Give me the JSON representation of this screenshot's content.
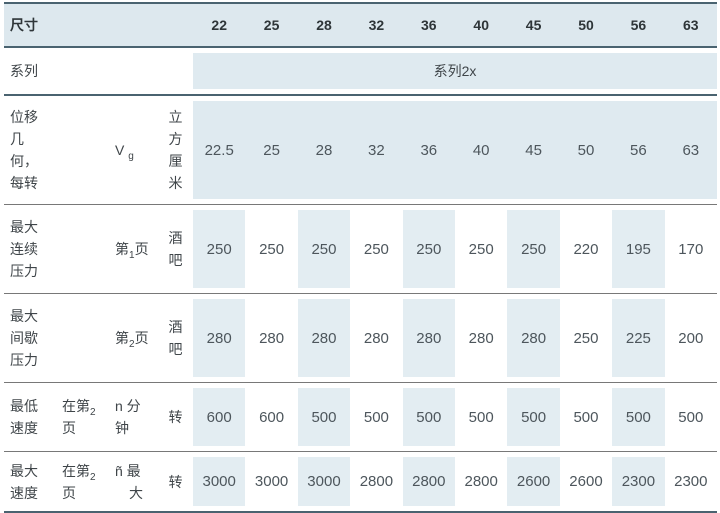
{
  "table": {
    "header": {
      "label": "尺寸",
      "sizes": [
        "22",
        "25",
        "28",
        "32",
        "36",
        "40",
        "45",
        "50",
        "56",
        "63"
      ]
    },
    "series": {
      "label": "系列",
      "value": "系列2x"
    },
    "rows": [
      {
        "id": "displacement",
        "label": "位移\n几\n何，\n每转",
        "sub_label_pre": "",
        "sub_label_sub": "",
        "sub_label_post": "",
        "symbol_pre": "V ",
        "symbol_sub": "g",
        "symbol_post": "",
        "unit": "立\n方\n厘\n米",
        "values": [
          "22.5",
          "25",
          "28",
          "32",
          "36",
          "40",
          "45",
          "50",
          "56",
          "63"
        ]
      },
      {
        "id": "max-continuous-pressure",
        "label": "最大\n连续\n压力",
        "sub_label_pre": "",
        "sub_label_sub": "",
        "sub_label_post": "",
        "symbol_pre": "第",
        "symbol_sub": "1",
        "symbol_post": "页",
        "unit": "酒\n吧",
        "values": [
          "250",
          "250",
          "250",
          "250",
          "250",
          "250",
          "250",
          "220",
          "195",
          "170"
        ]
      },
      {
        "id": "max-intermittent-pressure",
        "label": "最大\n间歇\n压力",
        "sub_label_pre": "",
        "sub_label_sub": "",
        "sub_label_post": "",
        "symbol_pre": "第",
        "symbol_sub": "2",
        "symbol_post": "页",
        "unit": "酒\n吧",
        "values": [
          "280",
          "280",
          "280",
          "280",
          "280",
          "280",
          "280",
          "250",
          "225",
          "200"
        ]
      },
      {
        "id": "min-speed",
        "label": "最低\n速度",
        "sub_label_pre": "在第",
        "sub_label_sub": "2",
        "sub_label_post": "\n页",
        "symbol_pre": "n 分\n钟",
        "symbol_sub": "",
        "symbol_post": "",
        "unit": "转",
        "values": [
          "600",
          "600",
          "500",
          "500",
          "500",
          "500",
          "500",
          "500",
          "500",
          "500"
        ]
      },
      {
        "id": "max-speed",
        "label": "最大\n速度",
        "sub_label_pre": "在第",
        "sub_label_sub": "2",
        "sub_label_post": "\n页",
        "symbol_pre": "ñ 最\n　大",
        "symbol_sub": "",
        "symbol_post": "",
        "unit": "转",
        "values": [
          "3000",
          "3000",
          "3000",
          "2800",
          "2800",
          "2800",
          "2600",
          "2600",
          "2300",
          "2300"
        ]
      }
    ],
    "colors": {
      "header_bg": "#dde8ee",
      "band_bg": "#dfeaf0",
      "stripe_bg": "#e3edf2",
      "border_dark": "#4a6370",
      "separator": "#787878"
    }
  }
}
